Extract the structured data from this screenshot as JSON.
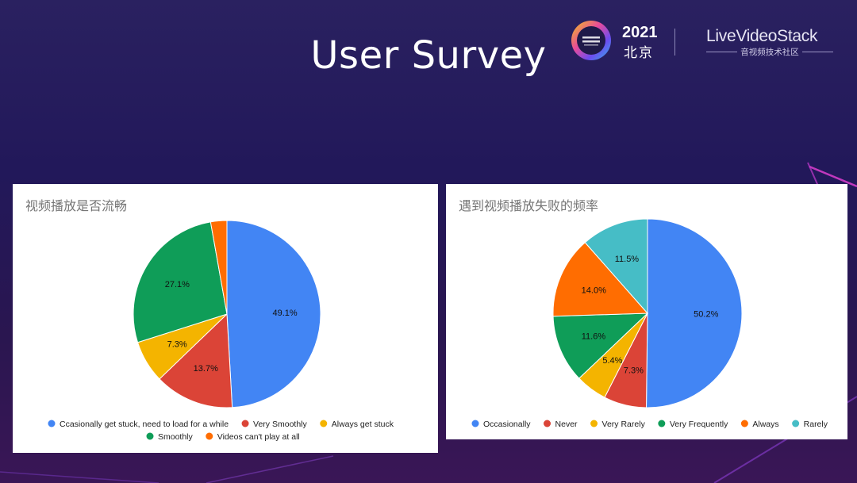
{
  "slide": {
    "title": "User Survey"
  },
  "logo": {
    "year": "2021",
    "city": "北京",
    "brand": "LiveVideoStack",
    "brand_sub": "音视频技术社区"
  },
  "chart_data": [
    {
      "type": "pie",
      "title": "视频播放是否流畅",
      "slices": [
        {
          "label": "Ccasionally get stuck, need to load for a while",
          "value": 49.1,
          "value_label": "49.1%",
          "color": "#4285f4"
        },
        {
          "label": "Very Smoothly",
          "value": 13.7,
          "value_label": "13.7%",
          "color": "#db4437"
        },
        {
          "label": "Always get stuck",
          "value": 7.3,
          "value_label": "7.3%",
          "color": "#f4b400"
        },
        {
          "label": "Smoothly",
          "value": 27.1,
          "value_label": "27.1%",
          "color": "#0f9d58"
        },
        {
          "label": "Videos can't play at all",
          "value": 2.8,
          "value_label": "",
          "color": "#ff6d01"
        }
      ],
      "legend_placement": "bottom"
    },
    {
      "type": "pie",
      "title": "遇到视频播放失败的频率",
      "slices": [
        {
          "label": "Occasionally",
          "value": 50.2,
          "value_label": "50.2%",
          "color": "#4285f4"
        },
        {
          "label": "Never",
          "value": 7.3,
          "value_label": "7.3%",
          "color": "#db4437"
        },
        {
          "label": "Very Rarely",
          "value": 5.4,
          "value_label": "5.4%",
          "color": "#f4b400"
        },
        {
          "label": "Very Frequently",
          "value": 11.6,
          "value_label": "11.6%",
          "color": "#0f9d58"
        },
        {
          "label": "Always",
          "value": 14.0,
          "value_label": "14.0%",
          "color": "#ff6d01"
        },
        {
          "label": "Rarely",
          "value": 11.5,
          "value_label": "11.5%",
          "color": "#46bdc6"
        }
      ],
      "legend_placement": "bottom"
    }
  ]
}
